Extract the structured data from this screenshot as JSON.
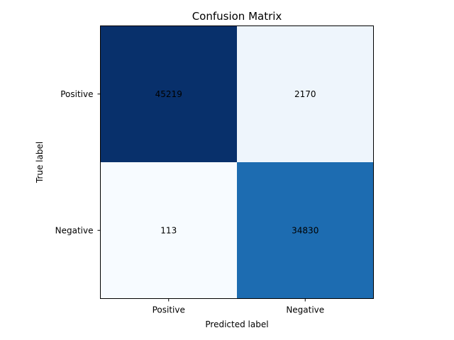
{
  "chart_data": {
    "type": "heatmap",
    "title": "Confusion Matrix",
    "xlabel": "Predicted label",
    "ylabel": "True label",
    "x_categories": [
      "Positive",
      "Negative"
    ],
    "y_categories": [
      "Positive",
      "Negative"
    ],
    "values": [
      [
        45219,
        2170
      ],
      [
        113,
        34830
      ]
    ],
    "colormap": "Blues",
    "colorscale": {
      "min_color": "#f7fbff",
      "max_color": "#08306b"
    },
    "grid": false,
    "legend": "none"
  }
}
